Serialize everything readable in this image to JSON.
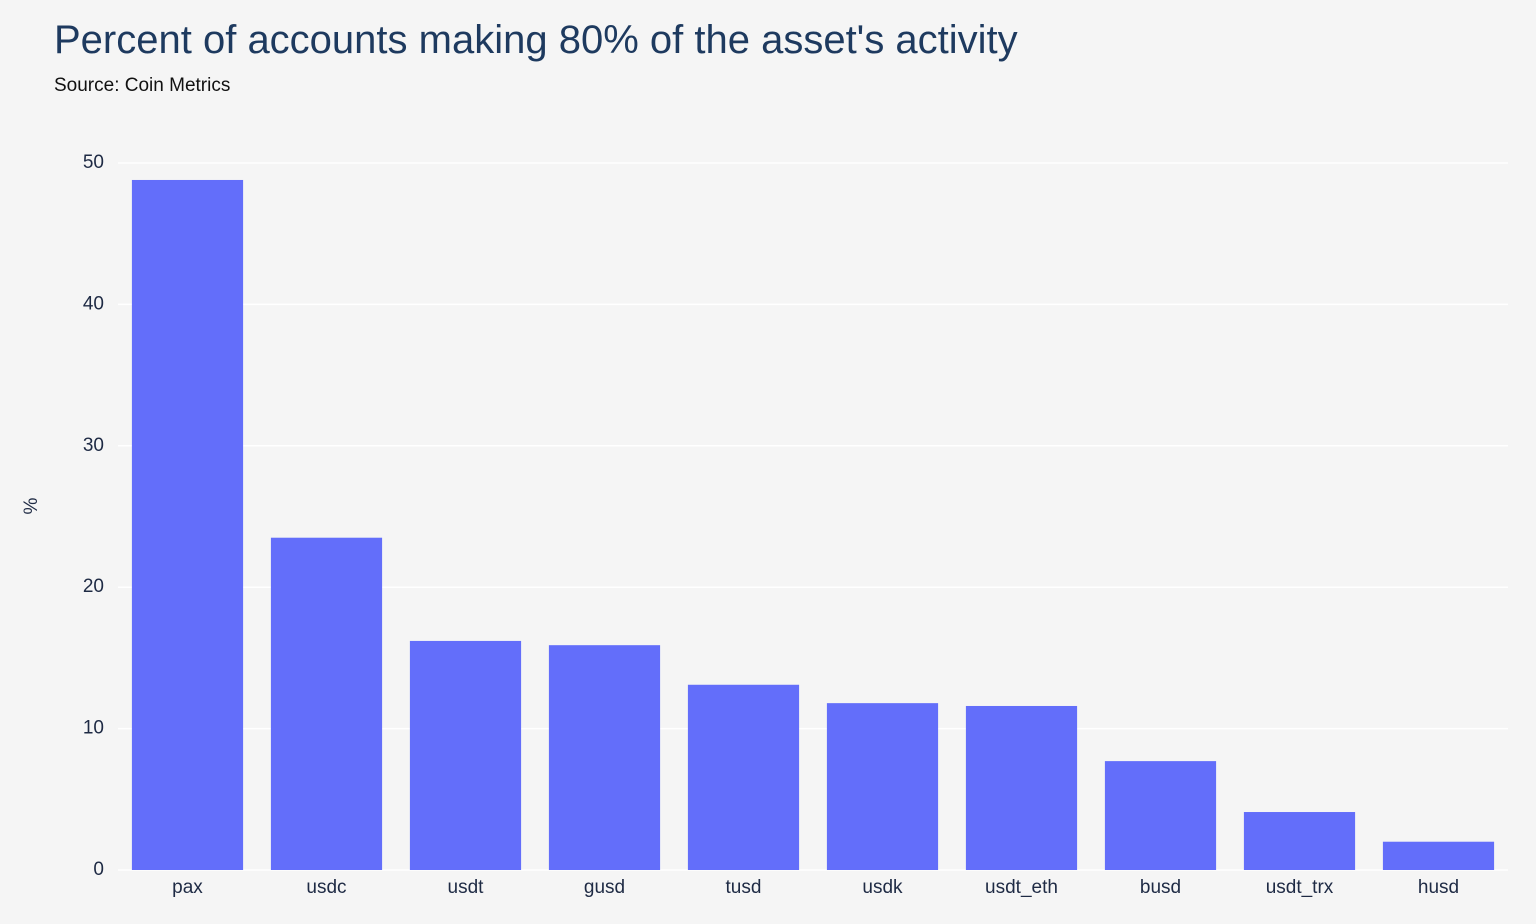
{
  "header": {
    "title": "Percent of accounts making 80% of the asset's activity",
    "subtitle": "Source: Coin Metrics"
  },
  "colors": {
    "bar": "#636efa",
    "grid": "#ffffff",
    "background": "#f5f5f5",
    "text": "#1e2a44"
  },
  "chart_data": {
    "type": "bar",
    "title": "Percent of accounts making 80% of the asset's activity",
    "subtitle": "Source: Coin Metrics",
    "xlabel": "",
    "ylabel": "%",
    "categories": [
      "pax",
      "usdc",
      "usdt",
      "gusd",
      "tusd",
      "usdk",
      "usdt_eth",
      "busd",
      "usdt_trx",
      "husd"
    ],
    "values": [
      48.8,
      23.5,
      16.2,
      15.9,
      13.1,
      11.8,
      11.6,
      7.7,
      4.1,
      2.0
    ],
    "ylim": [
      0,
      50
    ],
    "yticks": [
      0,
      10,
      20,
      30,
      40,
      50
    ],
    "grid": true,
    "legend": "none"
  }
}
